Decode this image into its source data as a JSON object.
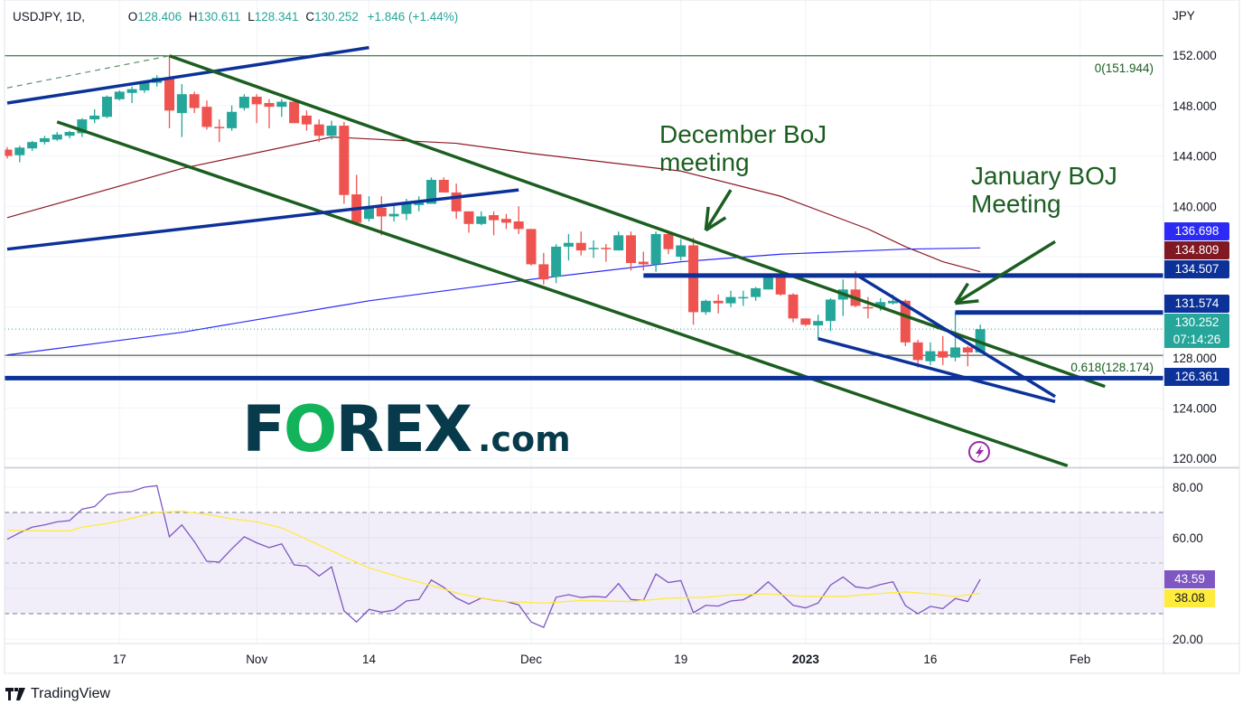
{
  "header": {
    "symbol": "USDJPY, 1D,",
    "open_label": "O",
    "open": "128.406",
    "high_label": "H",
    "high": "130.611",
    "low_label": "L",
    "low": "128.341",
    "close_label": "C",
    "close": "130.252",
    "change": "+1.846 (+1.44%)"
  },
  "price_axis": {
    "currency": "JPY",
    "ticks": [
      "152.000",
      "148.000",
      "144.000",
      "140.000",
      "128.000",
      "124.000",
      "120.000"
    ]
  },
  "badges": [
    {
      "text": "136.698",
      "color": "#2b2bf5"
    },
    {
      "text": "134.809",
      "color": "#801922"
    },
    {
      "text": "134.507",
      "color": "#0c3299"
    },
    {
      "text": "131.574",
      "color": "#0c3299"
    },
    {
      "text": "130.252",
      "sub": "07:14:26",
      "color": "#26a69a"
    },
    {
      "text": "126.361",
      "color": "#0c3299"
    }
  ],
  "rsi_badges": [
    {
      "text": "43.59",
      "color": "#7e57c2",
      "text_color": "#ffffff"
    },
    {
      "text": "38.08",
      "color": "#ffeb3b",
      "text_color": "#131722"
    }
  ],
  "annotations": {
    "december": "December BoJ\nmeeting",
    "january": "January BOJ\nMeeting"
  },
  "watermark": {
    "brand": "FOREX",
    "suffix": ".com"
  },
  "footer": {
    "logo_text": "TradingView"
  },
  "chart_data": [
    {
      "type": "candlestick",
      "title": "USDJPY, 1D",
      "ylim": [
        120,
        152
      ],
      "grid": true,
      "colors": {
        "up": "#26a69a",
        "down": "#ef5350"
      },
      "x_ticks": [
        {
          "label": "17",
          "date": "2022-10-17"
        },
        {
          "label": "Nov",
          "date": "2022-11-01"
        },
        {
          "label": "14",
          "date": "2022-11-14"
        },
        {
          "label": "Dec",
          "date": "2022-12-01"
        },
        {
          "label": "19",
          "date": "2022-12-19"
        },
        {
          "label": "2023",
          "date": "2023-01-02",
          "bold": true
        },
        {
          "label": "16",
          "date": "2023-01-16"
        },
        {
          "label": "Feb",
          "date": "2023-02-01"
        }
      ],
      "candles": [
        [
          "2022-10-04",
          144.5,
          144.7,
          143.8,
          144.0
        ],
        [
          "2022-10-05",
          144.06,
          144.8,
          143.5,
          144.66
        ],
        [
          "2022-10-06",
          144.6,
          145.2,
          144.4,
          145.1
        ],
        [
          "2022-10-07",
          145.1,
          145.6,
          144.9,
          145.4
        ],
        [
          "2022-10-10",
          145.3,
          145.9,
          145.2,
          145.7
        ],
        [
          "2022-10-11",
          145.6,
          146.0,
          145.4,
          145.9
        ],
        [
          "2022-10-12",
          145.8,
          147.0,
          145.5,
          146.9
        ],
        [
          "2022-10-13",
          146.9,
          147.7,
          146.6,
          147.2
        ],
        [
          "2022-10-14",
          147.1,
          148.8,
          147.0,
          148.7
        ],
        [
          "2022-10-17",
          148.5,
          149.2,
          148.4,
          149.1
        ],
        [
          "2022-10-18",
          149.0,
          149.5,
          148.2,
          149.3
        ],
        [
          "2022-10-19",
          149.2,
          150.0,
          149.0,
          149.9
        ],
        [
          "2022-10-20",
          149.8,
          150.4,
          149.5,
          150.2
        ],
        [
          "2022-10-21",
          150.2,
          151.944,
          146.2,
          147.6
        ],
        [
          "2022-10-24",
          147.4,
          149.7,
          145.5,
          148.9
        ],
        [
          "2022-10-25",
          148.9,
          149.1,
          147.4,
          147.8
        ],
        [
          "2022-10-26",
          147.9,
          148.4,
          146.1,
          146.3
        ],
        [
          "2022-10-27",
          146.3,
          146.9,
          145.1,
          146.2
        ],
        [
          "2022-10-28",
          146.2,
          148.0,
          146.0,
          147.5
        ],
        [
          "2022-10-31",
          147.8,
          148.9,
          147.6,
          148.7
        ],
        [
          "2022-11-01",
          148.7,
          148.9,
          146.6,
          148.1
        ],
        [
          "2022-11-02",
          148.2,
          148.5,
          146.2,
          147.9
        ],
        [
          "2022-11-03",
          147.9,
          148.5,
          147.1,
          148.3
        ],
        [
          "2022-11-04",
          148.3,
          148.4,
          146.6,
          146.6
        ],
        [
          "2022-11-07",
          147.2,
          147.6,
          146.0,
          146.5
        ],
        [
          "2022-11-08",
          146.5,
          146.9,
          145.1,
          145.6
        ],
        [
          "2022-11-09",
          145.6,
          146.8,
          145.3,
          146.4
        ],
        [
          "2022-11-10",
          146.4,
          146.7,
          140.2,
          140.9
        ],
        [
          "2022-11-11",
          140.95,
          142.5,
          138.5,
          138.7
        ],
        [
          "2022-11-14",
          139.0,
          140.8,
          138.8,
          139.9
        ],
        [
          "2022-11-15",
          139.9,
          140.8,
          137.7,
          139.2
        ],
        [
          "2022-11-16",
          139.2,
          140.1,
          138.8,
          139.4
        ],
        [
          "2022-11-17",
          139.4,
          140.6,
          138.9,
          140.2
        ],
        [
          "2022-11-18",
          140.1,
          140.8,
          139.6,
          140.3
        ],
        [
          "2022-11-21",
          140.2,
          142.3,
          140.2,
          142.1
        ],
        [
          "2022-11-22",
          142.1,
          142.3,
          141.1,
          141.1
        ],
        [
          "2022-11-23",
          141.1,
          141.8,
          139.0,
          139.6
        ],
        [
          "2022-11-24",
          139.6,
          139.6,
          137.9,
          138.6
        ],
        [
          "2022-11-25",
          138.6,
          139.6,
          138.5,
          139.2
        ],
        [
          "2022-11-28",
          139.3,
          139.6,
          137.7,
          138.9
        ],
        [
          "2022-11-29",
          139.0,
          139.4,
          138.2,
          138.7
        ],
        [
          "2022-11-30",
          138.8,
          140.0,
          137.8,
          138.2
        ],
        [
          "2022-12-01",
          138.2,
          138.2,
          135.3,
          135.4
        ],
        [
          "2022-12-02",
          135.4,
          136.3,
          133.8,
          134.2
        ],
        [
          "2022-12-05",
          134.4,
          137.0,
          133.9,
          136.8
        ],
        [
          "2022-12-06",
          136.8,
          137.8,
          135.7,
          137.1
        ],
        [
          "2022-12-07",
          137.1,
          138.0,
          136.1,
          136.5
        ],
        [
          "2022-12-08",
          136.6,
          137.3,
          135.9,
          136.7
        ],
        [
          "2022-12-09",
          136.7,
          137.0,
          135.6,
          136.6
        ],
        [
          "2022-12-12",
          136.5,
          138.0,
          136.5,
          137.7
        ],
        [
          "2022-12-13",
          137.7,
          138.0,
          134.9,
          135.5
        ],
        [
          "2022-12-14",
          135.6,
          136.4,
          134.9,
          135.4
        ],
        [
          "2022-12-15",
          135.4,
          138.0,
          134.8,
          137.8
        ],
        [
          "2022-12-16",
          137.8,
          137.9,
          136.2,
          136.6
        ],
        [
          "2022-12-19",
          136.0,
          137.4,
          135.7,
          136.9
        ],
        [
          "2022-12-20",
          136.9,
          137.5,
          130.6,
          131.6
        ],
        [
          "2022-12-21",
          131.6,
          132.6,
          131.4,
          132.5
        ],
        [
          "2022-12-22",
          132.5,
          133.0,
          131.5,
          132.3
        ],
        [
          "2022-12-23",
          132.3,
          133.3,
          132.0,
          132.8
        ],
        [
          "2022-12-26",
          132.7,
          133.3,
          132.1,
          132.8
        ],
        [
          "2022-12-27",
          132.8,
          133.6,
          132.5,
          133.5
        ],
        [
          "2022-12-28",
          133.4,
          134.6,
          133.4,
          134.4
        ],
        [
          "2022-12-29",
          134.4,
          134.6,
          132.9,
          133.0
        ],
        [
          "2022-12-30",
          133.0,
          133.1,
          130.8,
          131.1
        ],
        [
          "2023-01-02",
          131.1,
          131.1,
          130.5,
          130.6
        ],
        [
          "2023-01-03",
          130.55,
          131.4,
          129.5,
          130.9
        ],
        [
          "2023-01-04",
          130.9,
          132.7,
          130.1,
          132.6
        ],
        [
          "2023-01-05",
          132.6,
          134.2,
          131.3,
          133.4
        ],
        [
          "2023-01-06",
          133.4,
          134.85,
          132.0,
          132.1
        ],
        [
          "2023-01-09",
          132.0,
          132.8,
          131.1,
          131.9
        ],
        [
          "2023-01-10",
          132.0,
          132.7,
          131.7,
          132.4
        ],
        [
          "2023-01-11",
          132.3,
          133.0,
          132.2,
          132.5
        ],
        [
          "2023-01-12",
          132.5,
          132.6,
          128.9,
          129.2
        ],
        [
          "2023-01-13",
          129.2,
          129.4,
          127.2,
          127.8
        ],
        [
          "2023-01-16",
          127.7,
          129.2,
          127.4,
          128.5
        ],
        [
          "2023-01-17",
          128.5,
          129.7,
          127.4,
          128.0
        ],
        [
          "2023-01-18",
          128.0,
          131.6,
          127.7,
          128.8
        ],
        [
          "2023-01-19",
          128.8,
          128.9,
          127.3,
          128.4
        ],
        [
          "2023-01-20",
          128.406,
          130.611,
          128.341,
          130.252
        ]
      ],
      "moving_averages": [
        {
          "color": "#8b1a24",
          "points": [
            [
              "2022-10-04",
              139.1
            ],
            [
              "2022-10-24",
              143.0
            ],
            [
              "2022-11-09",
              145.5
            ],
            [
              "2022-11-23",
              145.0
            ],
            [
              "2022-12-01",
              144.2
            ],
            [
              "2022-12-19",
              142.8
            ],
            [
              "2022-12-29",
              140.8
            ],
            [
              "2023-01-09",
              138.2
            ],
            [
              "2023-01-12",
              136.8
            ],
            [
              "2023-01-17",
              135.6
            ],
            [
              "2023-01-20",
              134.809
            ]
          ]
        },
        {
          "color": "#2b2bf5",
          "points": [
            [
              "2022-10-04",
              128.2
            ],
            [
              "2022-10-24",
              130.0
            ],
            [
              "2022-11-14",
              132.5
            ],
            [
              "2022-12-01",
              134.2
            ],
            [
              "2022-12-19",
              135.6
            ],
            [
              "2022-12-29",
              136.2
            ],
            [
              "2023-01-12",
              136.6
            ],
            [
              "2023-01-20",
              136.698
            ]
          ]
        }
      ],
      "last_price": 130.252,
      "fib_levels": [
        {
          "label": "0(151.944)",
          "price": 151.944
        },
        {
          "label": "0.618(128.174)",
          "price": 128.174
        }
      ],
      "trendlines": [
        {
          "color": "#5f8f6a",
          "dashed": true,
          "from": [
            "2022-10-04",
            149.4
          ],
          "to": [
            "2022-10-21",
            151.944
          ]
        },
        {
          "color": "#0c3299",
          "from": [
            "2022-10-04",
            148.2
          ],
          "to": [
            "2022-11-14",
            152.6
          ]
        },
        {
          "color": "#1b5e20",
          "from": [
            "2022-10-21",
            151.944
          ],
          "to": [
            "2023-02-03",
            125.7
          ]
        },
        {
          "color": "#1b5e20",
          "from": [
            "2022-10-10",
            146.7
          ],
          "to": [
            "2023-01-31",
            119.4
          ]
        },
        {
          "color": "#0c3299",
          "from": [
            "2022-10-04",
            136.6
          ],
          "to": [
            "2022-11-30",
            141.3
          ]
        },
        {
          "color": "#0c3299",
          "from": [
            "2022-12-14",
            134.507
          ],
          "extend_right": true
        },
        {
          "color": "#0c3299",
          "from": [
            "2023-01-18",
            131.574
          ],
          "extend_right": true
        },
        {
          "color": "#0c3299",
          "from": [
            "2022-10-04",
            126.361
          ],
          "extend_right": true,
          "extend_left": true
        },
        {
          "color": "#0c3299",
          "from": [
            "2023-01-06",
            134.6
          ],
          "to": [
            "2023-01-30",
            124.9
          ]
        },
        {
          "color": "#0c3299",
          "from": [
            "2023-01-03",
            129.5
          ],
          "to": [
            "2023-01-30",
            124.5
          ]
        }
      ],
      "arrows": [
        {
          "color": "#1b5e20",
          "from": [
            "2022-12-23",
            141.3
          ],
          "to": [
            "2022-12-21",
            138.1
          ]
        },
        {
          "color": "#1b5e20",
          "from": [
            "2023-01-30",
            137.2
          ],
          "to": [
            "2023-01-18",
            132.3
          ]
        }
      ]
    },
    {
      "type": "line",
      "title": "RSI",
      "ylim": [
        20,
        80
      ],
      "y_ticks": [
        "80.00",
        "60.00",
        "20.00"
      ],
      "bands": {
        "upper": 70,
        "middle": 50,
        "lower": 30,
        "fill": "#7e57c2"
      },
      "series": [
        {
          "color": "#7e57c2",
          "values": [
            59.4,
            62.0,
            64.2,
            65.1,
            66.3,
            66.8,
            71.3,
            72.3,
            77.0,
            77.9,
            78.3,
            80.0,
            80.6,
            60.4,
            65.1,
            58.5,
            50.7,
            50.4,
            55.6,
            60.4,
            58.0,
            56.1,
            57.6,
            49.3,
            48.8,
            44.9,
            48.5,
            31.1,
            26.7,
            31.7,
            30.6,
            31.4,
            35.0,
            35.6,
            43.3,
            40.4,
            36.2,
            33.8,
            36.2,
            35.4,
            34.8,
            33.5,
            26.7,
            24.6,
            36.5,
            37.5,
            36.4,
            36.8,
            36.5,
            41.9,
            35.6,
            35.2,
            45.7,
            42.3,
            43.1,
            30.4,
            33.3,
            33.0,
            35.0,
            35.5,
            38.2,
            42.6,
            38.0,
            33.3,
            32.3,
            34.2,
            41.3,
            44.5,
            40.6,
            40.0,
            41.5,
            42.6,
            33.2,
            30.0,
            32.9,
            32.0,
            36.0,
            34.8,
            43.59
          ]
        },
        {
          "color": "#ffeb3b",
          "points": [
            [
              "2022-10-04",
              63.0
            ],
            [
              "2022-10-07",
              62.7
            ],
            [
              "2022-10-11",
              62.7
            ],
            [
              "2022-10-12",
              64.2
            ],
            [
              "2022-10-14",
              65.6
            ],
            [
              "2022-10-18",
              67.7
            ],
            [
              "2022-10-20",
              70.1
            ],
            [
              "2022-10-24",
              70.5
            ],
            [
              "2022-10-26",
              69.2
            ],
            [
              "2022-10-28",
              67.5
            ],
            [
              "2022-11-01",
              66.3
            ],
            [
              "2022-11-03",
              63.9
            ],
            [
              "2022-11-07",
              59.4
            ],
            [
              "2022-11-09",
              54.9
            ],
            [
              "2022-11-10",
              52.5
            ],
            [
              "2022-11-14",
              48.1
            ],
            [
              "2022-11-17",
              43.7
            ],
            [
              "2022-11-21",
              41.2
            ],
            [
              "2022-11-23",
              38.2
            ],
            [
              "2022-11-25",
              36.2
            ],
            [
              "2022-11-29",
              34.8
            ],
            [
              "2022-12-02",
              34.2
            ],
            [
              "2022-12-07",
              35.2
            ],
            [
              "2022-12-13",
              34.8
            ],
            [
              "2022-12-16",
              36.1
            ],
            [
              "2022-12-21",
              36.5
            ],
            [
              "2022-12-23",
              37.4
            ],
            [
              "2022-12-28",
              37.8
            ],
            [
              "2023-01-02",
              36.8
            ],
            [
              "2023-01-05",
              36.8
            ],
            [
              "2023-01-10",
              38.0
            ],
            [
              "2023-01-12",
              38.6
            ],
            [
              "2023-01-16",
              37.8
            ],
            [
              "2023-01-18",
              36.8
            ],
            [
              "2023-01-20",
              38.08
            ]
          ]
        }
      ]
    }
  ]
}
